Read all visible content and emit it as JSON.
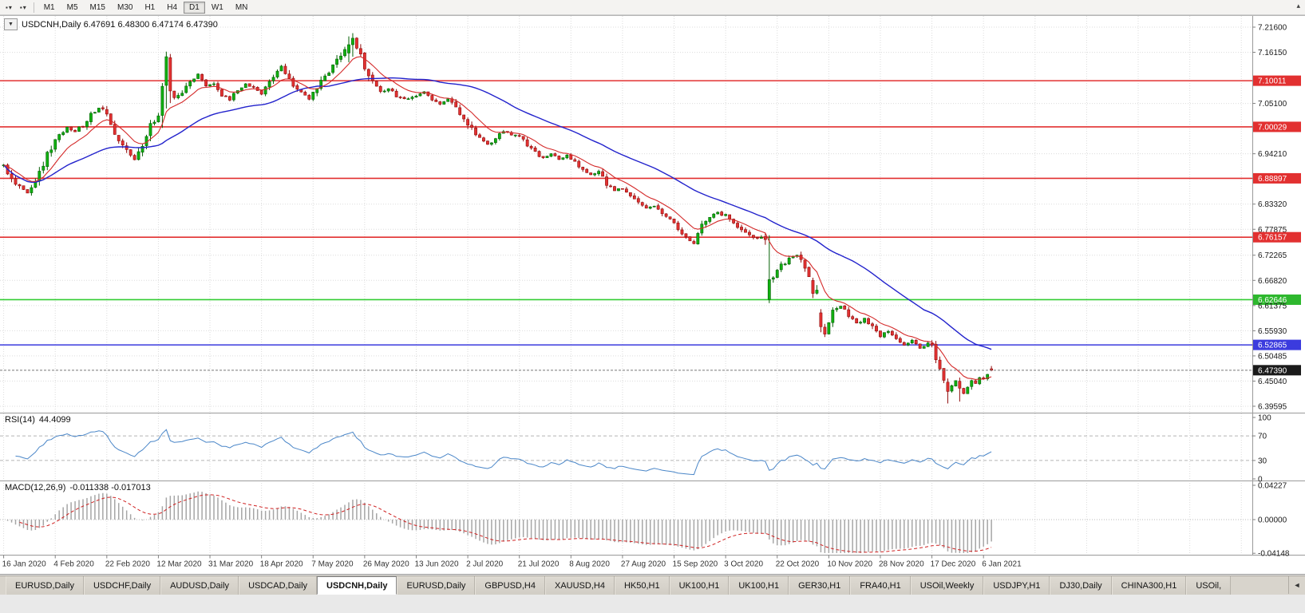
{
  "icons": {
    "bullet": "▪",
    "dropdown": "▾",
    "overflow": "▴",
    "symbol_dropdown": "▼",
    "tab_scroll": "◄"
  },
  "toolbar": {
    "timeframes": [
      "M1",
      "M5",
      "M15",
      "M30",
      "H1",
      "H4",
      "D1",
      "W1",
      "MN"
    ],
    "active_timeframe": "D1"
  },
  "chart": {
    "title_symbol": "USDCNH,Daily",
    "ohlc_text": "6.47691 6.48300 6.47174 6.47390",
    "current_price": 6.4739,
    "badge_colors": {
      "res": "#e23030",
      "sup": "#2eb82e",
      "blue": "#3b3bde",
      "price": "#1a1a1a"
    },
    "price_scale": [
      {
        "text": "7.21600",
        "price": 7.216,
        "kind": "tick"
      },
      {
        "text": "7.16150",
        "price": 7.1615,
        "kind": "tick"
      },
      {
        "text": "7.10011",
        "price": 7.10011,
        "kind": "res"
      },
      {
        "text": "7.05100",
        "price": 7.051,
        "kind": "tick"
      },
      {
        "text": "7.00029",
        "price": 7.00029,
        "kind": "res"
      },
      {
        "text": "6.94210",
        "price": 6.9421,
        "kind": "tick"
      },
      {
        "text": "6.88897",
        "price": 6.88897,
        "kind": "res"
      },
      {
        "text": "6.83320",
        "price": 6.8332,
        "kind": "tick"
      },
      {
        "text": "6.77875",
        "price": 6.77875,
        "kind": "tick"
      },
      {
        "text": "6.76157",
        "price": 6.76157,
        "kind": "res"
      },
      {
        "text": "6.72265",
        "price": 6.72265,
        "kind": "tick"
      },
      {
        "text": "6.66820",
        "price": 6.6682,
        "kind": "tick"
      },
      {
        "text": "6.62646",
        "price": 6.62646,
        "kind": "sup"
      },
      {
        "text": "6.61375",
        "price": 6.61375,
        "kind": "tick"
      },
      {
        "text": "6.55930",
        "price": 6.5593,
        "kind": "tick"
      },
      {
        "text": "6.52865",
        "price": 6.52865,
        "kind": "blue"
      },
      {
        "text": "6.50485",
        "price": 6.50485,
        "kind": "tick"
      },
      {
        "text": "6.47390",
        "price": 6.4739,
        "kind": "price"
      },
      {
        "text": "6.45040",
        "price": 6.4504,
        "kind": "tick"
      },
      {
        "text": "6.39595",
        "price": 6.39595,
        "kind": "tick"
      }
    ]
  },
  "rsi": {
    "name": "RSI(14)",
    "value": "44.4099",
    "scale": [
      100,
      70,
      30,
      0
    ],
    "guide_levels": [
      70,
      30
    ],
    "line_color": "#4a86c8"
  },
  "macd": {
    "name": "MACD(12,26,9)",
    "values": "-0.011338 -0.017013",
    "scale": [
      "0.04227",
      "0.00000",
      "-0.04148"
    ],
    "histogram_color": "#a6a6a6",
    "signal_color": "#cf2020"
  },
  "tabs": {
    "items": [
      "EURUSD,Daily",
      "USDCHF,Daily",
      "AUDUSD,Daily",
      "USDCAD,Daily",
      "USDCNH,Daily",
      "EURUSD,Daily",
      "GBPUSD,H4",
      "XAUUSD,H4",
      "HK50,H1",
      "UK100,H1",
      "UK100,H1",
      "GER30,H1",
      "FRA40,H1",
      "USOil,Weekly",
      "USDJPY,H1",
      "DJ30,Daily",
      "CHINA300,H1",
      "USOil,"
    ],
    "active_index": 4
  },
  "chart_data": {
    "type": "candlestick",
    "symbol": "USDCNH",
    "timeframe": "Daily",
    "num_candles": 250,
    "candles_per_label": 13,
    "visible_price_range": [
      6.39595,
      7.216
    ],
    "x_labels": [
      "16 Jan 2020",
      "4 Feb 2020",
      "22 Feb 2020",
      "12 Mar 2020",
      "31 Mar 2020",
      "18 Apr 2020",
      "7 May 2020",
      "26 May 2020",
      "13 Jun 2020",
      "2 Jul 2020",
      "21 Jul 2020",
      "8 Aug 2020",
      "27 Aug 2020",
      "15 Sep 2020",
      "3 Oct 2020",
      "22 Oct 2020",
      "10 Nov 2020",
      "28 Nov 2020",
      "17 Dec 2020",
      "6 Jan 2021"
    ],
    "last_candle": {
      "open": 6.47691,
      "high": 6.483,
      "low": 6.47174,
      "close": 6.4739
    },
    "horizontal_levels": [
      {
        "price": 7.10011,
        "color": "#e23030"
      },
      {
        "price": 7.00029,
        "color": "#e23030"
      },
      {
        "price": 6.88897,
        "color": "#e23030"
      },
      {
        "price": 6.76157,
        "color": "#e23030"
      },
      {
        "price": 6.62646,
        "color": "#33cc33"
      },
      {
        "price": 6.52865,
        "color": "#3b3bde"
      }
    ],
    "current_price": 6.4739,
    "ma_fast": {
      "type": "ema",
      "period": 10,
      "color": "#d42a2a"
    },
    "ma_slow": {
      "type": "sma",
      "period": 40,
      "color": "#2222cc"
    },
    "colors": {
      "up_fill": "#10b010",
      "up_stroke": "#056005",
      "down_fill": "#e33232",
      "down_stroke": "#8f0b0b",
      "grid": "#dcdcdc"
    },
    "indicators": {
      "rsi": {
        "period": 14,
        "last": 44.4099
      },
      "macd": {
        "fast": 12,
        "slow": 26,
        "signal": 9,
        "last_macd": -0.011338,
        "last_signal": -0.017013
      }
    },
    "anchors": [
      [
        0,
        6.915
      ],
      [
        2,
        6.89
      ],
      [
        4,
        6.868
      ],
      [
        6,
        6.858
      ],
      [
        8,
        6.885
      ],
      [
        10,
        6.92
      ],
      [
        13,
        6.972
      ],
      [
        16,
        6.998
      ],
      [
        18,
        6.988
      ],
      [
        20,
        7.005
      ],
      [
        22,
        7.028
      ],
      [
        24,
        7.042
      ],
      [
        26,
        7.03
      ],
      [
        28,
        6.992
      ],
      [
        30,
        6.958
      ],
      [
        33,
        6.93
      ],
      [
        35,
        6.962
      ],
      [
        37,
        7.0
      ],
      [
        39,
        7.03
      ],
      [
        43,
        7.06
      ],
      [
        45,
        7.075
      ],
      [
        47,
        7.1
      ],
      [
        49,
        7.112
      ],
      [
        51,
        7.09
      ],
      [
        53,
        7.096
      ],
      [
        55,
        7.07
      ],
      [
        57,
        7.06
      ],
      [
        59,
        7.08
      ],
      [
        61,
        7.092
      ],
      [
        63,
        7.085
      ],
      [
        65,
        7.072
      ],
      [
        67,
        7.095
      ],
      [
        69,
        7.12
      ],
      [
        70,
        7.132
      ],
      [
        71,
        7.115
      ],
      [
        73,
        7.092
      ],
      [
        75,
        7.078
      ],
      [
        77,
        7.062
      ],
      [
        79,
        7.088
      ],
      [
        81,
        7.105
      ],
      [
        83,
        7.128
      ],
      [
        85,
        7.155
      ],
      [
        86,
        7.165
      ],
      [
        89,
        7.17
      ],
      [
        90,
        7.152
      ],
      [
        91,
        7.13
      ],
      [
        93,
        7.098
      ],
      [
        95,
        7.075
      ],
      [
        97,
        7.085
      ],
      [
        99,
        7.068
      ],
      [
        101,
        7.06
      ],
      [
        104,
        7.068
      ],
      [
        106,
        7.075
      ],
      [
        108,
        7.058
      ],
      [
        110,
        7.05
      ],
      [
        112,
        7.062
      ],
      [
        114,
        7.045
      ],
      [
        116,
        7.02
      ],
      [
        118,
        6.996
      ],
      [
        120,
        6.976
      ],
      [
        122,
        6.962
      ],
      [
        124,
        6.975
      ],
      [
        126,
        6.992
      ],
      [
        128,
        6.985
      ],
      [
        130,
        6.982
      ],
      [
        132,
        6.962
      ],
      [
        134,
        6.945
      ],
      [
        136,
        6.932
      ],
      [
        138,
        6.942
      ],
      [
        140,
        6.93
      ],
      [
        142,
        6.938
      ],
      [
        144,
        6.922
      ],
      [
        146,
        6.91
      ],
      [
        148,
        6.895
      ],
      [
        150,
        6.902
      ],
      [
        152,
        6.878
      ],
      [
        154,
        6.862
      ],
      [
        156,
        6.868
      ],
      [
        158,
        6.85
      ],
      [
        160,
        6.838
      ],
      [
        162,
        6.822
      ],
      [
        164,
        6.828
      ],
      [
        166,
        6.812
      ],
      [
        168,
        6.798
      ],
      [
        170,
        6.782
      ],
      [
        172,
        6.758
      ],
      [
        174,
        6.752
      ],
      [
        176,
        6.788
      ],
      [
        178,
        6.808
      ],
      [
        180,
        6.815
      ],
      [
        182,
        6.808
      ],
      [
        184,
        6.792
      ],
      [
        186,
        6.778
      ],
      [
        188,
        6.768
      ],
      [
        190,
        6.758
      ],
      [
        192,
        6.756
      ],
      [
        194,
        6.678
      ],
      [
        196,
        6.7
      ],
      [
        198,
        6.716
      ],
      [
        200,
        6.722
      ],
      [
        202,
        6.7
      ],
      [
        205,
        6.648
      ],
      [
        207,
        6.552
      ],
      [
        209,
        6.6
      ],
      [
        211,
        6.612
      ],
      [
        213,
        6.595
      ],
      [
        215,
        6.575
      ],
      [
        217,
        6.585
      ],
      [
        219,
        6.568
      ],
      [
        221,
        6.548
      ],
      [
        223,
        6.558
      ],
      [
        225,
        6.54
      ],
      [
        227,
        6.528
      ],
      [
        229,
        6.538
      ],
      [
        231,
        6.522
      ],
      [
        233,
        6.532
      ],
      [
        234,
        6.525
      ],
      [
        235,
        6.505
      ],
      [
        236,
        6.478
      ],
      [
        237,
        6.452
      ],
      [
        239,
        6.44
      ],
      [
        240,
        6.452
      ],
      [
        242,
        6.422
      ],
      [
        243,
        6.438
      ],
      [
        244,
        6.452
      ],
      [
        245,
        6.445
      ],
      [
        246,
        6.458
      ],
      [
        247,
        6.452
      ],
      [
        248,
        6.465
      ],
      [
        249,
        6.4739
      ]
    ],
    "special_candles": [
      {
        "i": 40,
        "o": 7.025,
        "h": 7.095,
        "l": 6.998,
        "c": 7.088
      },
      {
        "i": 41,
        "o": 7.09,
        "h": 7.163,
        "l": 7.04,
        "c": 7.152
      },
      {
        "i": 42,
        "o": 7.15,
        "h": 7.158,
        "l": 7.052,
        "c": 7.078
      },
      {
        "i": 87,
        "o": 7.16,
        "h": 7.196,
        "l": 7.14,
        "c": 7.178
      },
      {
        "i": 88,
        "o": 7.178,
        "h": 7.203,
        "l": 7.152,
        "c": 7.192
      },
      {
        "i": 193,
        "o": 6.627,
        "h": 6.766,
        "l": 6.619,
        "c": 6.67
      },
      {
        "i": 204,
        "o": 6.668,
        "h": 6.674,
        "l": 6.63,
        "c": 6.64
      },
      {
        "i": 206,
        "o": 6.598,
        "h": 6.606,
        "l": 6.556,
        "c": 6.568
      },
      {
        "i": 238,
        "o": 6.448,
        "h": 6.456,
        "l": 6.402,
        "c": 6.428
      },
      {
        "i": 241,
        "o": 6.45,
        "h": 6.458,
        "l": 6.406,
        "c": 6.435
      },
      {
        "i": 249,
        "o": 6.47691,
        "h": 6.483,
        "l": 6.47174,
        "c": 6.4739
      }
    ]
  }
}
